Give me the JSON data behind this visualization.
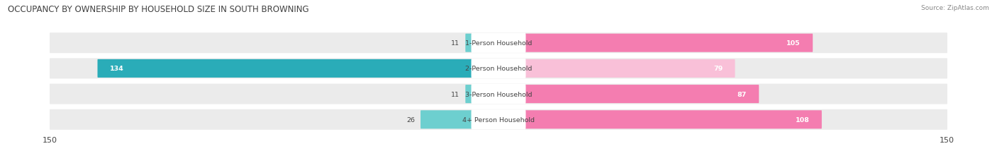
{
  "title": "OCCUPANCY BY OWNERSHIP BY HOUSEHOLD SIZE IN SOUTH BROWNING",
  "source": "Source: ZipAtlas.com",
  "categories": [
    "1-Person Household",
    "2-Person Household",
    "3-Person Household",
    "4+ Person Household"
  ],
  "owner_values": [
    11,
    134,
    11,
    26
  ],
  "renter_values": [
    105,
    79,
    87,
    108
  ],
  "owner_color_1": "#6dcfcf",
  "owner_color_2": "#2aacb8",
  "renter_color_1": "#f47db0",
  "renter_color_2": "#f9c0d8",
  "axis_max": 150,
  "row_bg_color": "#ebebeb",
  "label_color_dark": "#444444",
  "label_color_white": "#ffffff",
  "title_color": "#404040",
  "source_color": "#888888",
  "legend_owner_color": "#5dc8ca",
  "legend_renter_color": "#f47db0"
}
